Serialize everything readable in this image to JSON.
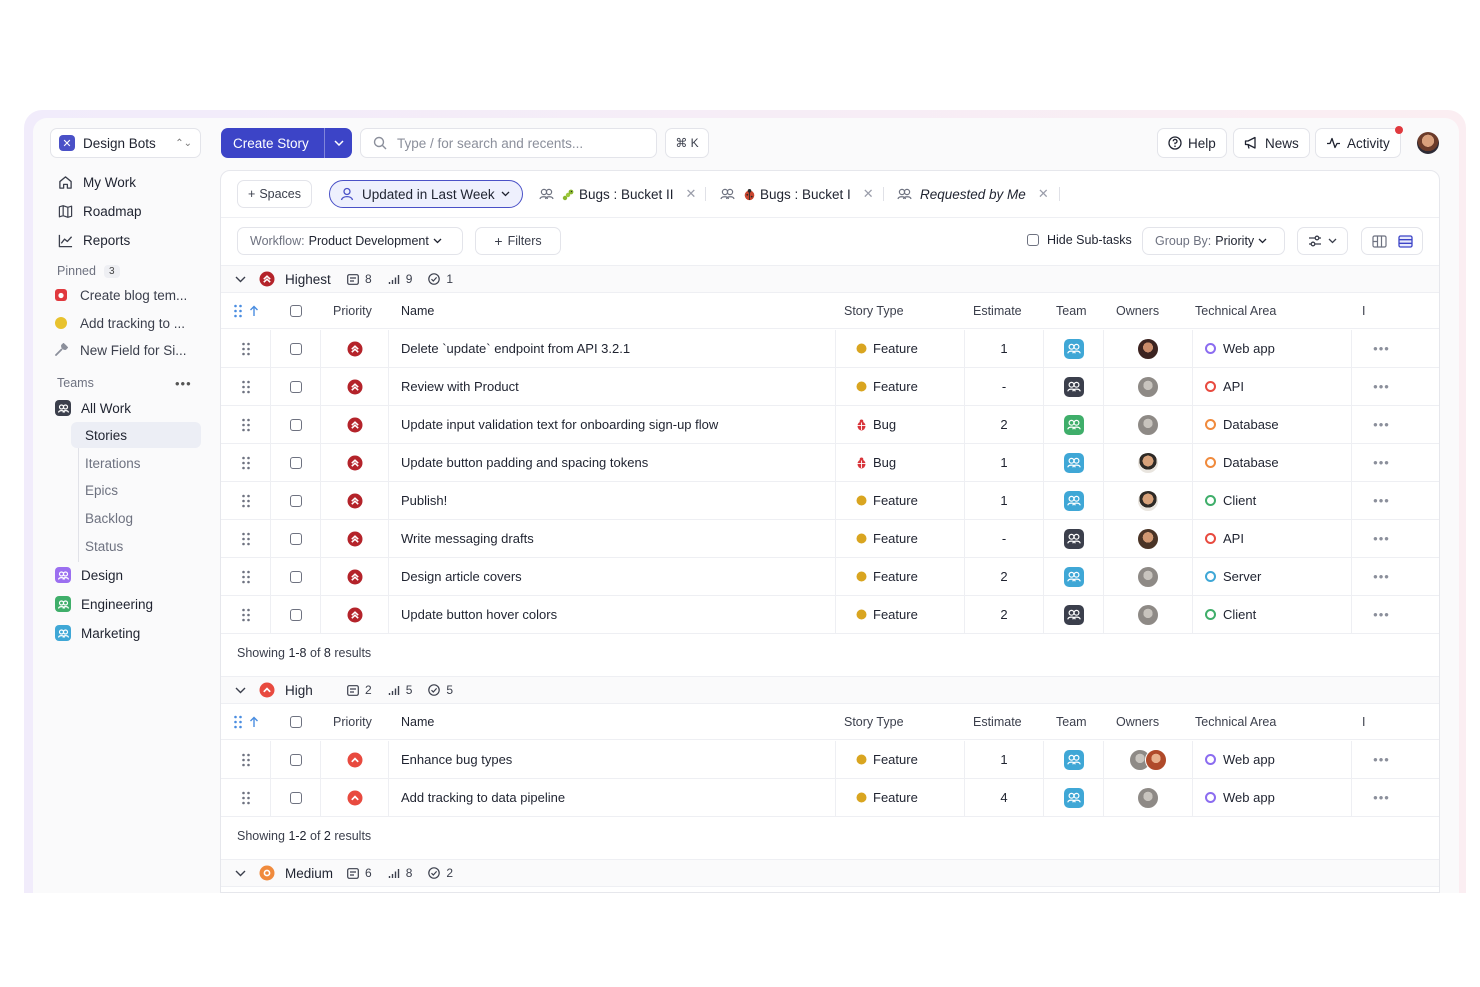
{
  "workspace": {
    "name": "Design Bots"
  },
  "nav": [
    {
      "label": "My Work",
      "icon": "home-icon"
    },
    {
      "label": "Roadmap",
      "icon": "map-icon"
    },
    {
      "label": "Reports",
      "icon": "chart-icon"
    }
  ],
  "pinned": {
    "title": "Pinned",
    "count": "3",
    "items": [
      {
        "label": "Create blog tem...",
        "color": "#e0393e"
      },
      {
        "label": "Add tracking to ...",
        "color": "#e8c22e"
      },
      {
        "label": "New Field for Si...",
        "color": "#8b8f9b"
      }
    ]
  },
  "teams": {
    "title": "Teams",
    "all_work": "All Work",
    "sub": [
      "Stories",
      "Iterations",
      "Epics",
      "Backlog",
      "Status"
    ],
    "items": [
      {
        "label": "Design",
        "color": "#9b6ff0"
      },
      {
        "label": "Engineering",
        "color": "#3fae6a"
      },
      {
        "label": "Marketing",
        "color": "#3fa7d6"
      }
    ]
  },
  "topbar": {
    "create_label": "Create Story",
    "search_placeholder": "Type / for search and recents...",
    "shortcut": "⌘ K",
    "help": "Help",
    "news": "News",
    "activity": "Activity"
  },
  "views": {
    "spaces": "Spaces",
    "active": "Updated in Last Week",
    "tabs": [
      "Bugs : Bucket II",
      "Bugs : Bucket I",
      "Requested by Me"
    ]
  },
  "toolbar": {
    "workflow_label": "Workflow:",
    "workflow_value": "Product Development",
    "filters": "Filters",
    "hide_subtasks": "Hide Sub-tasks",
    "group_label": "Group By:",
    "group_value": "Priority"
  },
  "columns": [
    "Priority",
    "Name",
    "Story Type",
    "Estimate",
    "Team",
    "Owners",
    "Technical Area",
    "I"
  ],
  "colors": {
    "accent": "#3c44c7",
    "feature": "#d9a520",
    "bug": "#d8343a",
    "highest": "#b4232a",
    "high": "#e84a3f",
    "medium": "#f08a3c"
  },
  "groups": [
    {
      "name": "Highest",
      "stats": [
        "8",
        "9",
        "1"
      ],
      "showing_prefix": "Showing",
      "showing_range": "1-8",
      "showing_of": "of",
      "showing_total": "8",
      "showing_suffix": "results",
      "rows": [
        {
          "name": "Delete `update` endpoint from API 3.2.1",
          "type": "Feature",
          "estimate": "1",
          "team": "marketing",
          "owner": "dark",
          "area": "Web app",
          "area_color": "#8b6cf0"
        },
        {
          "name": "Review with Product",
          "type": "Feature",
          "estimate": "-",
          "team": "all",
          "owner": "grey",
          "area": "API",
          "area_color": "#e84a3f"
        },
        {
          "name": "Update input validation text for onboarding sign-up flow",
          "type": "Bug",
          "estimate": "2",
          "team": "engineering",
          "owner": "grey",
          "area": "Database",
          "area_color": "#f08a3c"
        },
        {
          "name": "Update button padding and spacing tokens",
          "type": "Bug",
          "estimate": "1",
          "team": "marketing",
          "owner": "man",
          "area": "Database",
          "area_color": "#f08a3c"
        },
        {
          "name": "Publish!",
          "type": "Feature",
          "estimate": "1",
          "team": "marketing",
          "owner": "man",
          "area": "Client",
          "area_color": "#3fae6a"
        },
        {
          "name": "Write messaging drafts",
          "type": "Feature",
          "estimate": "-",
          "team": "all",
          "owner": "face",
          "area": "API",
          "area_color": "#e84a3f"
        },
        {
          "name": "Design article covers",
          "type": "Feature",
          "estimate": "2",
          "team": "marketing",
          "owner": "grey",
          "area": "Server",
          "area_color": "#3fa7d6"
        },
        {
          "name": "Update button hover colors",
          "type": "Feature",
          "estimate": "2",
          "team": "all",
          "owner": "grey",
          "area": "Client",
          "area_color": "#3fae6a"
        }
      ]
    },
    {
      "name": "High",
      "stats": [
        "2",
        "5",
        "5"
      ],
      "showing_prefix": "Showing",
      "showing_range": "1-2",
      "showing_of": "of",
      "showing_total": "2",
      "showing_suffix": "results",
      "rows": [
        {
          "name": "Enhance bug types",
          "type": "Feature",
          "estimate": "1",
          "team": "marketing",
          "owner": "pair",
          "area": "Web app",
          "area_color": "#8b6cf0"
        },
        {
          "name": "Add tracking to data pipeline",
          "type": "Feature",
          "estimate": "4",
          "team": "marketing",
          "owner": "grey",
          "area": "Web app",
          "area_color": "#8b6cf0"
        }
      ]
    },
    {
      "name": "Medium",
      "stats": [
        "6",
        "8",
        "2"
      ]
    }
  ]
}
